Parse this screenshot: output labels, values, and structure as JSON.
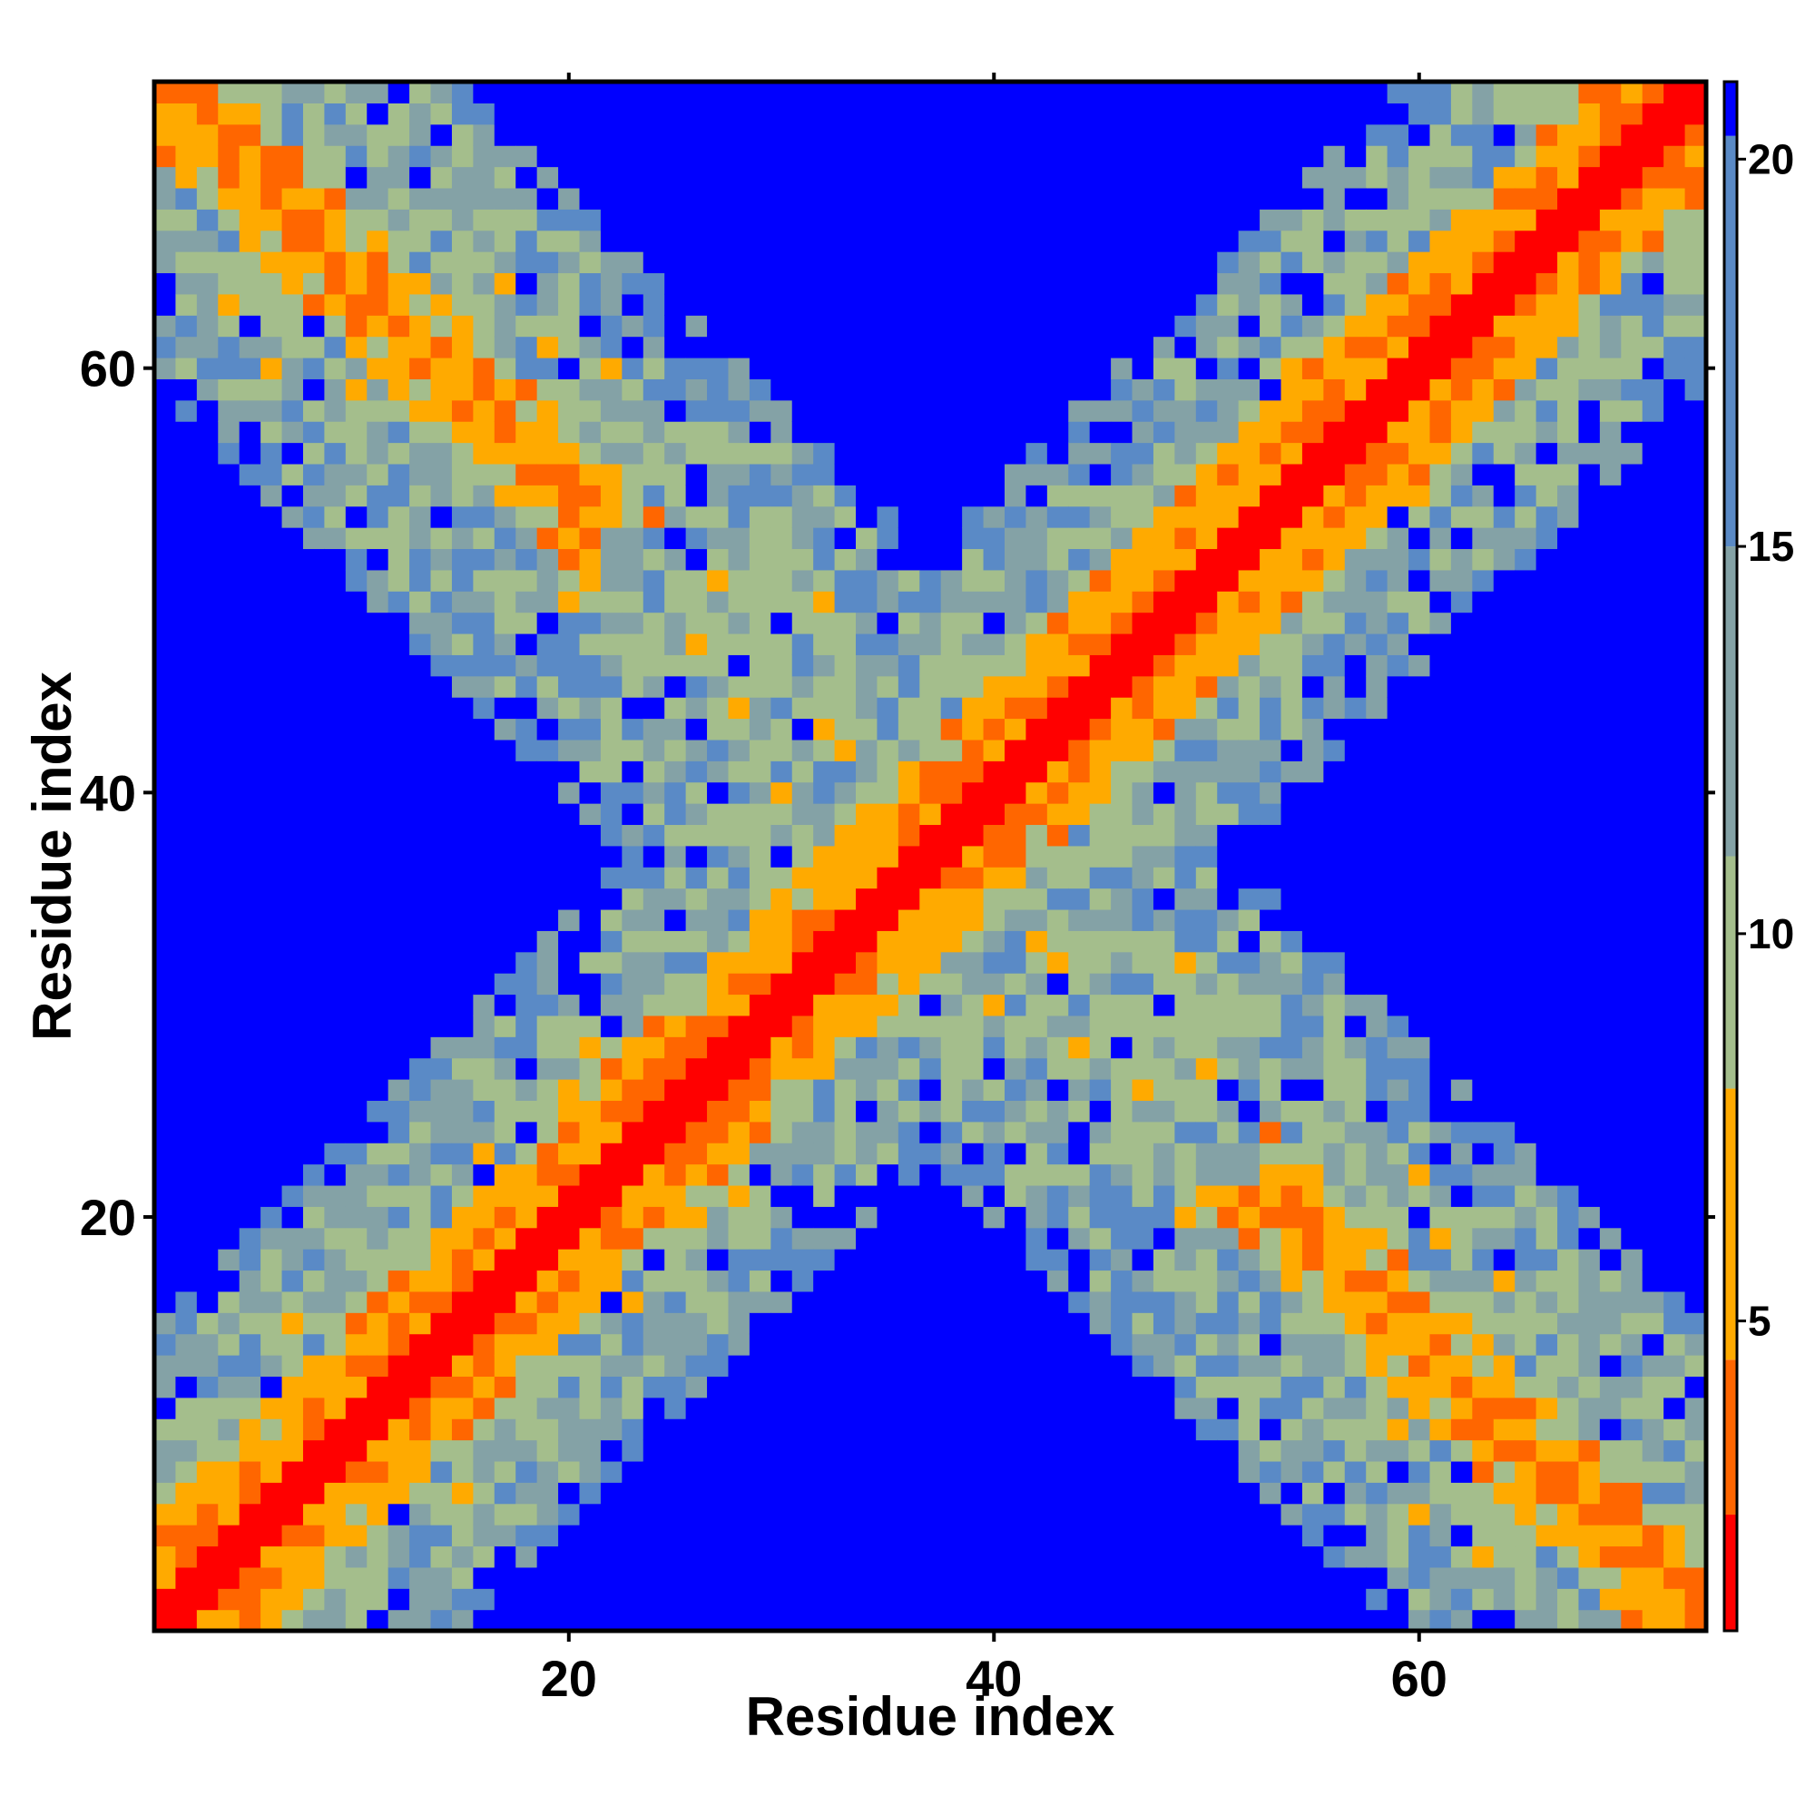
{
  "chart_data": {
    "type": "heatmap",
    "title": "",
    "xlabel": "Residue index",
    "ylabel": "Residue index",
    "n": 73,
    "xlim": [
      0.5,
      73.5
    ],
    "ylim": [
      0.5,
      73.5
    ],
    "x_ticks": [
      "20",
      "40",
      "60"
    ],
    "x_tick_values": [
      20,
      40,
      60
    ],
    "y_ticks": [
      "20",
      "40",
      "60"
    ],
    "y_tick_values": [
      20,
      40,
      60
    ],
    "colorbar": {
      "range": [
        1,
        21
      ],
      "ticks": [
        "5",
        "10",
        "15",
        "20"
      ],
      "tick_values": [
        5,
        10,
        15,
        20
      ],
      "placement": "right"
    },
    "colors": {
      "near": "#ff0000",
      "close": "#ff6600",
      "mid": "#ffaa00",
      "far_light": "#a4be8c",
      "far_mid": "#84a2a6",
      "far": "#5a8ac6",
      "beyond": "#0000ff"
    },
    "value_description": "Symmetric residue-residue distance map; diagonal band of low values (red/orange) with an anti-diagonal cross pattern of moderate values; remaining regions at the maximum (blue).",
    "structure": {
      "diagonal_band_halfwidth": 8,
      "antidiagonal_center_sum": 74,
      "antidiagonal_band_halfwidth": 8
    }
  }
}
